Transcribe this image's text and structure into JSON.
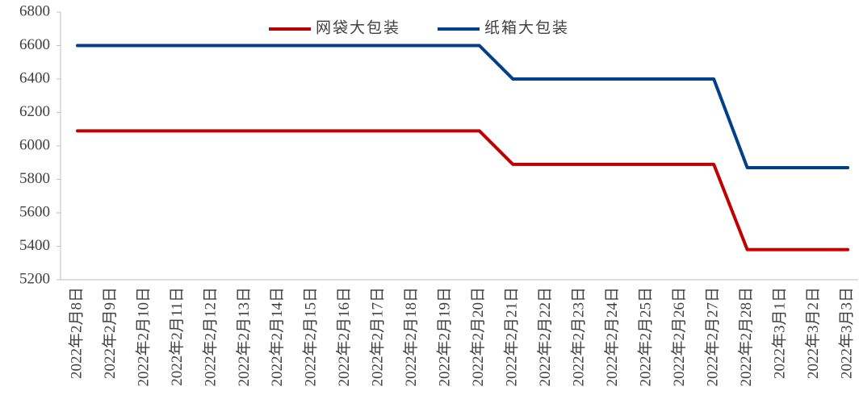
{
  "chart_data": {
    "type": "line",
    "categories": [
      "2022年2月8日",
      "2022年2月9日",
      "2022年2月10日",
      "2022年2月11日",
      "2022年2月12日",
      "2022年2月13日",
      "2022年2月14日",
      "2022年2月15日",
      "2022年2月16日",
      "2022年2月17日",
      "2022年2月18日",
      "2022年2月19日",
      "2022年2月20日",
      "2022年2月21日",
      "2022年2月22日",
      "2022年2月23日",
      "2022年2月24日",
      "2022年2月25日",
      "2022年2月26日",
      "2022年2月27日",
      "2022年2月28日",
      "2022年3月1日",
      "2022年3月2日",
      "2022年3月3日"
    ],
    "series": [
      {
        "name": "网袋大包装",
        "color": "#c00000",
        "values": [
          6090,
          6090,
          6090,
          6090,
          6090,
          6090,
          6090,
          6090,
          6090,
          6090,
          6090,
          6090,
          6090,
          5890,
          5890,
          5890,
          5890,
          5890,
          5890,
          5890,
          5380,
          5380,
          5380,
          5380
        ]
      },
      {
        "name": "纸箱大包装",
        "color": "#003f8a",
        "values": [
          6600,
          6600,
          6600,
          6600,
          6600,
          6600,
          6600,
          6600,
          6600,
          6600,
          6600,
          6600,
          6600,
          6400,
          6400,
          6400,
          6400,
          6400,
          6400,
          6400,
          5870,
          5870,
          5870,
          5870
        ]
      }
    ],
    "ylim": [
      5200,
      6800
    ],
    "yticks": [
      5200,
      5400,
      5600,
      5800,
      6000,
      6200,
      6400,
      6600,
      6800
    ],
    "grid": false,
    "legend": "top"
  }
}
